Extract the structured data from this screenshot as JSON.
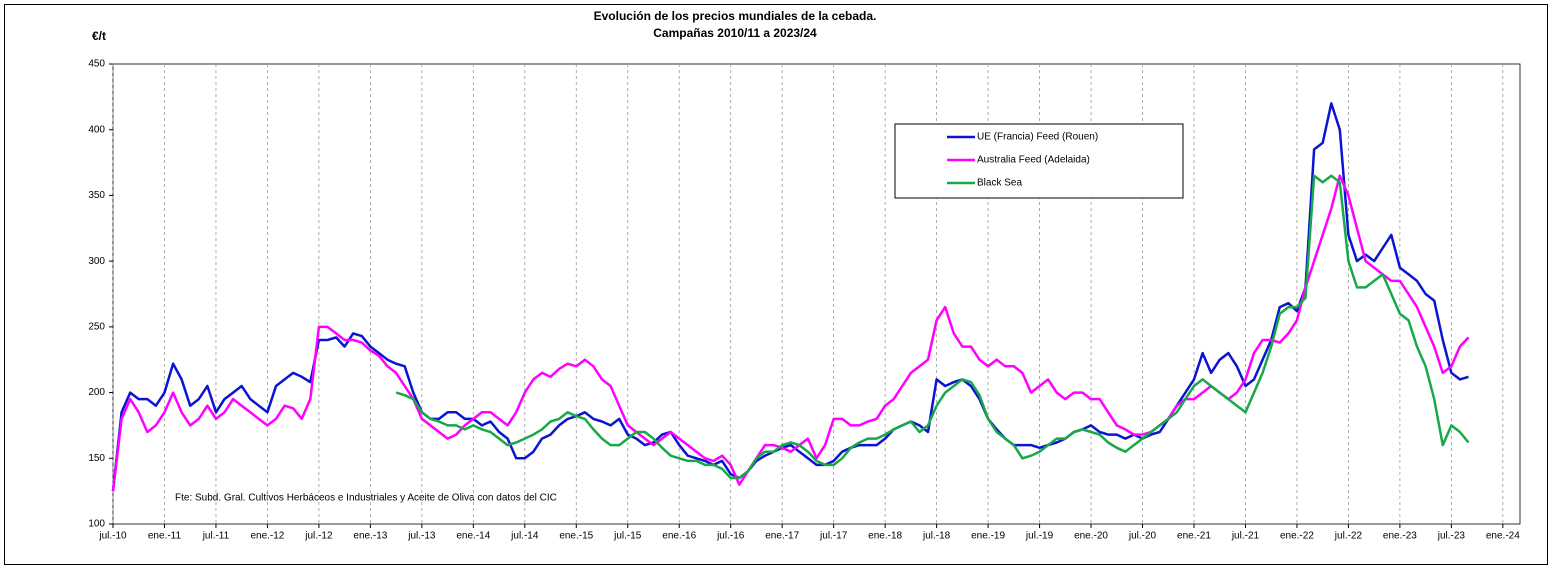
{
  "chart_data": {
    "type": "line",
    "title": "Evolución de los precios mundiales de la cebada.",
    "subtitle": "Campañas 2010/11 a 2023/24",
    "y_label": "€/t",
    "annotation": "Fte: Subd. Gral. Cultivos Herbáceos e Industriales y Aceite de Oliva con datos del CIC",
    "grid": "x",
    "legend": "upper right",
    "ylim": [
      100,
      450
    ],
    "yticks": [
      100,
      150,
      200,
      250,
      300,
      350,
      400,
      450
    ],
    "xlim": [
      "2010-07",
      "2024-03"
    ],
    "xticks": [
      {
        "value": "2010-07",
        "label": "jul.-10"
      },
      {
        "value": "2011-01",
        "label": "ene.-11"
      },
      {
        "value": "2011-07",
        "label": "jul.-11"
      },
      {
        "value": "2012-01",
        "label": "ene.-12"
      },
      {
        "value": "2012-07",
        "label": "jul.-12"
      },
      {
        "value": "2013-01",
        "label": "ene.-13"
      },
      {
        "value": "2013-07",
        "label": "jul.-13"
      },
      {
        "value": "2014-01",
        "label": "ene.-14"
      },
      {
        "value": "2014-07",
        "label": "jul.-14"
      },
      {
        "value": "2015-01",
        "label": "ene.-15"
      },
      {
        "value": "2015-07",
        "label": "jul.-15"
      },
      {
        "value": "2016-01",
        "label": "ene.-16"
      },
      {
        "value": "2016-07",
        "label": "jul.-16"
      },
      {
        "value": "2017-01",
        "label": "ene.-17"
      },
      {
        "value": "2017-07",
        "label": "jul.-17"
      },
      {
        "value": "2018-01",
        "label": "ene.-18"
      },
      {
        "value": "2018-07",
        "label": "jul.-18"
      },
      {
        "value": "2019-01",
        "label": "ene.-19"
      },
      {
        "value": "2019-07",
        "label": "jul.-19"
      },
      {
        "value": "2020-01",
        "label": "ene.-20"
      },
      {
        "value": "2020-07",
        "label": "jul.-20"
      },
      {
        "value": "2021-01",
        "label": "ene.-21"
      },
      {
        "value": "2021-07",
        "label": "jul.-21"
      },
      {
        "value": "2022-01",
        "label": "ene.-22"
      },
      {
        "value": "2022-07",
        "label": "jul.-22"
      },
      {
        "value": "2023-01",
        "label": "ene.-23"
      },
      {
        "value": "2023-07",
        "label": "jul.-23"
      },
      {
        "value": "2024-01",
        "label": "ene.-24"
      }
    ],
    "x": [
      "2010-07",
      "2010-08",
      "2010-09",
      "2010-10",
      "2010-11",
      "2010-12",
      "2011-01",
      "2011-02",
      "2011-03",
      "2011-04",
      "2011-05",
      "2011-06",
      "2011-07",
      "2011-08",
      "2011-09",
      "2011-10",
      "2011-11",
      "2011-12",
      "2012-01",
      "2012-02",
      "2012-03",
      "2012-04",
      "2012-05",
      "2012-06",
      "2012-07",
      "2012-08",
      "2012-09",
      "2012-10",
      "2012-11",
      "2012-12",
      "2013-01",
      "2013-02",
      "2013-03",
      "2013-04",
      "2013-05",
      "2013-06",
      "2013-07",
      "2013-08",
      "2013-09",
      "2013-10",
      "2013-11",
      "2013-12",
      "2014-01",
      "2014-02",
      "2014-03",
      "2014-04",
      "2014-05",
      "2014-06",
      "2014-07",
      "2014-08",
      "2014-09",
      "2014-10",
      "2014-11",
      "2014-12",
      "2015-01",
      "2015-02",
      "2015-03",
      "2015-04",
      "2015-05",
      "2015-06",
      "2015-07",
      "2015-08",
      "2015-09",
      "2015-10",
      "2015-11",
      "2015-12",
      "2016-01",
      "2016-02",
      "2016-03",
      "2016-04",
      "2016-05",
      "2016-06",
      "2016-07",
      "2016-08",
      "2016-09",
      "2016-10",
      "2016-11",
      "2016-12",
      "2017-01",
      "2017-02",
      "2017-03",
      "2017-04",
      "2017-05",
      "2017-06",
      "2017-07",
      "2017-08",
      "2017-09",
      "2017-10",
      "2017-11",
      "2017-12",
      "2018-01",
      "2018-02",
      "2018-03",
      "2018-04",
      "2018-05",
      "2018-06",
      "2018-07",
      "2018-08",
      "2018-09",
      "2018-10",
      "2018-11",
      "2018-12",
      "2019-01",
      "2019-02",
      "2019-03",
      "2019-04",
      "2019-05",
      "2019-06",
      "2019-07",
      "2019-08",
      "2019-09",
      "2019-10",
      "2019-11",
      "2019-12",
      "2020-01",
      "2020-02",
      "2020-03",
      "2020-04",
      "2020-05",
      "2020-06",
      "2020-07",
      "2020-08",
      "2020-09",
      "2020-10",
      "2020-11",
      "2020-12",
      "2021-01",
      "2021-02",
      "2021-03",
      "2021-04",
      "2021-05",
      "2021-06",
      "2021-07",
      "2021-08",
      "2021-09",
      "2021-10",
      "2021-11",
      "2021-12",
      "2022-01",
      "2022-02",
      "2022-03",
      "2022-04",
      "2022-05",
      "2022-06",
      "2022-07",
      "2022-08",
      "2022-09",
      "2022-10",
      "2022-11",
      "2022-12",
      "2023-01",
      "2023-02",
      "2023-03",
      "2023-04",
      "2023-05",
      "2023-06",
      "2023-07",
      "2023-08",
      "2023-09"
    ],
    "series": [
      {
        "name": "UE (Francia) Feed (Rouen)",
        "color": "#0a14d2",
        "values": [
          125,
          185,
          200,
          195,
          195,
          190,
          200,
          222,
          210,
          190,
          195,
          205,
          185,
          195,
          200,
          205,
          195,
          190,
          185,
          205,
          210,
          215,
          212,
          208,
          240,
          240,
          242,
          235,
          245,
          243,
          235,
          230,
          225,
          222,
          220,
          200,
          185,
          180,
          180,
          185,
          185,
          180,
          180,
          175,
          178,
          170,
          165,
          150,
          150,
          155,
          165,
          168,
          175,
          180,
          182,
          185,
          180,
          178,
          175,
          180,
          168,
          165,
          160,
          162,
          168,
          170,
          160,
          152,
          150,
          148,
          145,
          148,
          138,
          135,
          140,
          148,
          152,
          155,
          158,
          160,
          155,
          150,
          145,
          145,
          148,
          155,
          158,
          160,
          160,
          160,
          165,
          172,
          175,
          178,
          175,
          170,
          210,
          205,
          208,
          210,
          205,
          195,
          180,
          172,
          165,
          160,
          160,
          160,
          158,
          160,
          162,
          165,
          170,
          172,
          175,
          170,
          168,
          168,
          165,
          168,
          165,
          168,
          170,
          180,
          190,
          200,
          210,
          230,
          215,
          225,
          230,
          220,
          205,
          210,
          225,
          240,
          265,
          268,
          262,
          280,
          385,
          390,
          420,
          400,
          320,
          300,
          305,
          300,
          310,
          320,
          295,
          290,
          285,
          275,
          270,
          240,
          215,
          210,
          212
        ]
      },
      {
        "name": "Australia Feed (Adelaida)",
        "color": "#ff00ff",
        "values": [
          125,
          180,
          195,
          185,
          170,
          175,
          185,
          200,
          185,
          175,
          180,
          190,
          180,
          185,
          195,
          190,
          185,
          180,
          175,
          180,
          190,
          188,
          180,
          195,
          250,
          250,
          245,
          240,
          240,
          238,
          232,
          228,
          220,
          215,
          205,
          195,
          180,
          175,
          170,
          165,
          168,
          175,
          180,
          185,
          185,
          180,
          175,
          185,
          200,
          210,
          215,
          212,
          218,
          222,
          220,
          225,
          220,
          210,
          205,
          190,
          175,
          170,
          165,
          160,
          165,
          170,
          165,
          160,
          155,
          150,
          148,
          152,
          145,
          130,
          140,
          150,
          160,
          160,
          158,
          155,
          160,
          165,
          150,
          160,
          180,
          180,
          175,
          175,
          178,
          180,
          190,
          195,
          205,
          215,
          220,
          225,
          255,
          265,
          245,
          235,
          235,
          225,
          220,
          225,
          220,
          220,
          215,
          200,
          205,
          210,
          200,
          195,
          200,
          200,
          195,
          195,
          185,
          175,
          172,
          168,
          168,
          170,
          175,
          180,
          190,
          195,
          195,
          200,
          205,
          200,
          195,
          200,
          210,
          230,
          240,
          240,
          238,
          245,
          255,
          280,
          300,
          320,
          340,
          365,
          350,
          325,
          300,
          295,
          290,
          285,
          285,
          275,
          265,
          250,
          235,
          215,
          220,
          235,
          242
        ]
      },
      {
        "name": "Black Sea",
        "color": "#18a848",
        "values": [
          null,
          null,
          null,
          null,
          null,
          null,
          null,
          null,
          null,
          null,
          null,
          null,
          null,
          null,
          null,
          null,
          null,
          null,
          null,
          null,
          null,
          null,
          null,
          null,
          null,
          null,
          null,
          null,
          null,
          null,
          null,
          null,
          null,
          200,
          198,
          195,
          185,
          180,
          178,
          175,
          175,
          172,
          175,
          172,
          170,
          165,
          160,
          162,
          165,
          168,
          172,
          178,
          180,
          185,
          182,
          180,
          172,
          165,
          160,
          160,
          165,
          170,
          170,
          165,
          158,
          152,
          150,
          148,
          148,
          145,
          145,
          142,
          135,
          135,
          140,
          150,
          155,
          155,
          160,
          162,
          160,
          155,
          148,
          145,
          145,
          150,
          158,
          162,
          165,
          165,
          168,
          172,
          175,
          178,
          170,
          175,
          190,
          200,
          205,
          210,
          208,
          198,
          180,
          170,
          165,
          160,
          150,
          152,
          155,
          160,
          165,
          165,
          170,
          172,
          170,
          168,
          162,
          158,
          155,
          160,
          165,
          170,
          175,
          180,
          185,
          195,
          205,
          210,
          205,
          200,
          195,
          190,
          185,
          200,
          215,
          235,
          260,
          265,
          265,
          272,
          365,
          360,
          365,
          360,
          300,
          280,
          280,
          285,
          290,
          275,
          260,
          255,
          235,
          220,
          195,
          160,
          175,
          170,
          162
        ]
      }
    ]
  }
}
